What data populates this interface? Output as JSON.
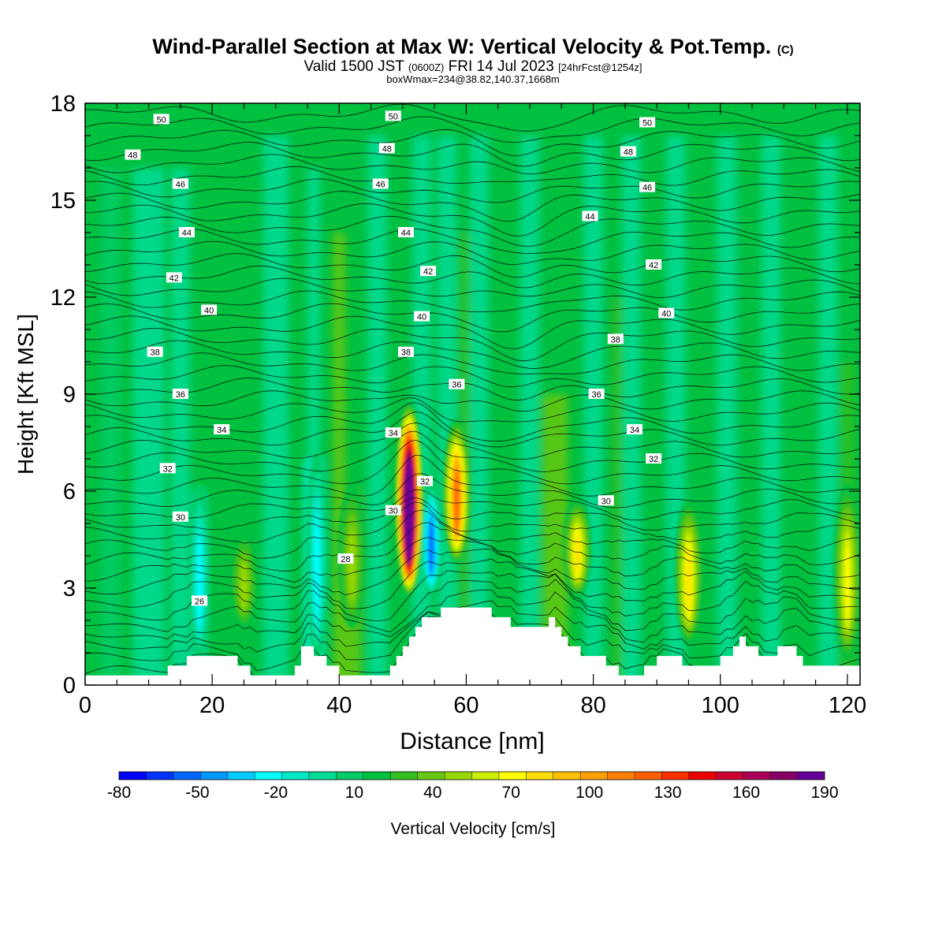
{
  "header": {
    "title": "Wind-Parallel Section at Max W: Vertical Velocity & Pot.Temp.",
    "title_suffix": "(C)",
    "valid_a": "Valid 1500 JST",
    "valid_b": "(0600Z)",
    "valid_c": "FRI 14 Jul 2023",
    "valid_d": "[24hrFcst@1254z]",
    "boxline": "boxWmax=234@38.82,140.37,1668m"
  },
  "chart_data": {
    "type": "heatmap",
    "xlabel": "Distance [nm]",
    "ylabel": "Height [Kft MSL]",
    "xlim": [
      0,
      122
    ],
    "ylim": [
      0,
      18
    ],
    "xticks": [
      "0",
      "20",
      "40",
      "60",
      "80",
      "100",
      "120"
    ],
    "yticks": [
      "0",
      "3",
      "6",
      "9",
      "12",
      "15",
      "18"
    ],
    "colorbar": {
      "label": "Vertical Velocity [cm/s]",
      "ticks": [
        "-80",
        "-50",
        "-20",
        "10",
        "40",
        "70",
        "100",
        "130",
        "160",
        "190"
      ],
      "range": [
        -80,
        190
      ],
      "step": 10,
      "colors": [
        "#0000ff",
        "#0033ff",
        "#0066ff",
        "#0099ff",
        "#00ccff",
        "#00ffff",
        "#00e8c8",
        "#00dc96",
        "#00cc66",
        "#00c040",
        "#33c020",
        "#66c810",
        "#99d800",
        "#ccee00",
        "#ffff00",
        "#ffdd00",
        "#ffc000",
        "#ff9f00",
        "#ff7f00",
        "#ff5f00",
        "#ff3000",
        "#ee0000",
        "#cc0033",
        "#aa0055",
        "#880066",
        "#660099"
      ]
    },
    "updrafts": [
      {
        "x": 51,
        "z_bottom": 3,
        "z_top": 8.5,
        "w_max": 234
      },
      {
        "x": 58.5,
        "z_bottom": 4,
        "z_top": 8,
        "w_max": 110
      },
      {
        "x": 77.5,
        "z_bottom": 3,
        "z_top": 5.5,
        "w_max": 65
      },
      {
        "x": 95,
        "z_bottom": 1.5,
        "z_top": 5.5,
        "w_max": 65
      },
      {
        "x": 25,
        "z_bottom": 2,
        "z_top": 4.5,
        "w_max": 40
      },
      {
        "x": 42,
        "z_bottom": 2,
        "z_top": 6,
        "w_max": 40
      },
      {
        "x": 120,
        "z_bottom": 1,
        "z_top": 6,
        "w_max": 60
      }
    ],
    "downdrafts": [
      {
        "x": 54.5,
        "z_bottom": 3,
        "z_top": 6,
        "w_min": -60
      },
      {
        "x": 36.5,
        "z_bottom": 1,
        "z_top": 7,
        "w_min": -25
      },
      {
        "x": 18,
        "z_bottom": 1,
        "z_top": 6,
        "w_min": -25
      }
    ],
    "terrain": {
      "x": [
        0,
        12,
        13,
        16,
        21,
        24,
        26,
        29,
        33,
        34,
        36,
        38,
        40,
        44,
        48,
        49,
        50,
        51,
        52,
        53,
        56,
        59,
        61,
        64,
        67,
        70,
        72,
        73,
        74,
        75,
        76,
        77,
        78,
        79,
        80,
        82,
        84,
        86,
        87,
        88,
        90,
        92,
        94,
        96,
        98,
        100,
        102,
        103,
        104,
        106,
        108,
        109,
        111,
        112,
        113,
        115,
        120,
        122
      ],
      "z": [
        0.3,
        0.3,
        0.6,
        0.9,
        0.9,
        0.6,
        0.3,
        0.3,
        0.6,
        1.2,
        0.9,
        0.6,
        0.3,
        0.3,
        0.6,
        0.9,
        1.2,
        1.5,
        1.8,
        2.1,
        2.4,
        2.4,
        2.4,
        2.1,
        1.8,
        1.8,
        1.8,
        2.1,
        1.8,
        1.5,
        1.2,
        1.2,
        0.9,
        0.9,
        0.9,
        0.6,
        0.3,
        0.3,
        0.3,
        0.6,
        0.9,
        0.9,
        0.6,
        0.6,
        0.6,
        0.9,
        1.2,
        1.5,
        1.2,
        0.9,
        0.9,
        1.2,
        1.2,
        0.9,
        0.6,
        0.6,
        0.6,
        0.6
      ]
    },
    "isentropes_label": "Pot.Temp. (C)",
    "isentrope_labels": [
      {
        "v": "50",
        "x": 12,
        "z": 17.5
      },
      {
        "v": "50",
        "x": 48.5,
        "z": 17.6
      },
      {
        "v": "50",
        "x": 88.5,
        "z": 17.4
      },
      {
        "v": "48",
        "x": 7.5,
        "z": 16.4
      },
      {
        "v": "48",
        "x": 47.5,
        "z": 16.6
      },
      {
        "v": "48",
        "x": 85.5,
        "z": 16.5
      },
      {
        "v": "46",
        "x": 15,
        "z": 15.5
      },
      {
        "v": "46",
        "x": 46.5,
        "z": 15.5
      },
      {
        "v": "46",
        "x": 88.5,
        "z": 15.4
      },
      {
        "v": "44",
        "x": 16,
        "z": 14.0
      },
      {
        "v": "44",
        "x": 50.5,
        "z": 14.0
      },
      {
        "v": "44",
        "x": 79.5,
        "z": 14.5
      },
      {
        "v": "42",
        "x": 14,
        "z": 12.6
      },
      {
        "v": "42",
        "x": 54,
        "z": 12.8
      },
      {
        "v": "42",
        "x": 89.5,
        "z": 13.0
      },
      {
        "v": "40",
        "x": 19.5,
        "z": 11.6
      },
      {
        "v": "40",
        "x": 53,
        "z": 11.4
      },
      {
        "v": "40",
        "x": 91.5,
        "z": 11.5
      },
      {
        "v": "38",
        "x": 11,
        "z": 10.3
      },
      {
        "v": "38",
        "x": 50.5,
        "z": 10.3
      },
      {
        "v": "38",
        "x": 83.5,
        "z": 10.7
      },
      {
        "v": "36",
        "x": 15,
        "z": 9.0
      },
      {
        "v": "36",
        "x": 58.5,
        "z": 9.3
      },
      {
        "v": "36",
        "x": 80.5,
        "z": 9.0
      },
      {
        "v": "34",
        "x": 21.5,
        "z": 7.9
      },
      {
        "v": "34",
        "x": 48.5,
        "z": 7.8
      },
      {
        "v": "34",
        "x": 86.5,
        "z": 7.9
      },
      {
        "v": "32",
        "x": 13,
        "z": 6.7
      },
      {
        "v": "32",
        "x": 53.5,
        "z": 6.3
      },
      {
        "v": "32",
        "x": 89.5,
        "z": 7.0
      },
      {
        "v": "30",
        "x": 15,
        "z": 5.2
      },
      {
        "v": "30",
        "x": 48.5,
        "z": 5.4
      },
      {
        "v": "30",
        "x": 82,
        "z": 5.7
      },
      {
        "v": "28",
        "x": 41,
        "z": 3.9
      },
      {
        "v": "26",
        "x": 18,
        "z": 2.6
      }
    ]
  }
}
